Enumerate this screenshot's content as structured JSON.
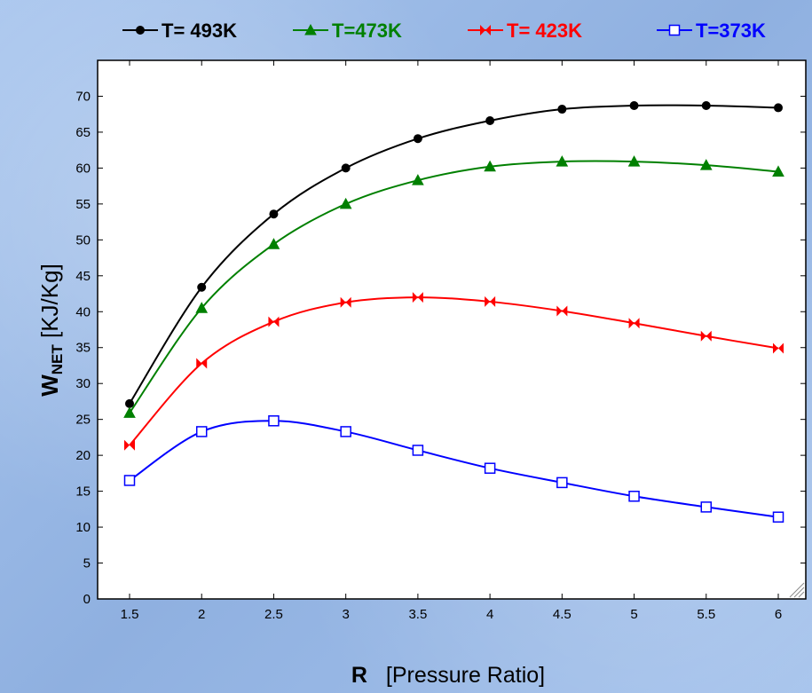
{
  "chart_data": {
    "type": "line",
    "x": [
      1.5,
      2,
      2.5,
      3,
      3.5,
      4,
      4.5,
      5,
      5.5,
      6
    ],
    "series": [
      {
        "name": "T= 493K",
        "color": "#000000",
        "marker": "circle",
        "values": [
          27.2,
          43.4,
          53.6,
          60.0,
          64.1,
          66.6,
          68.2,
          68.7,
          68.7,
          68.4
        ]
      },
      {
        "name": "T=473K",
        "color": "#008000",
        "marker": "triangle",
        "values": [
          25.9,
          40.5,
          49.4,
          55.0,
          58.3,
          60.2,
          60.9,
          60.9,
          60.4,
          59.5
        ]
      },
      {
        "name": "T= 423K",
        "color": "#ff0000",
        "marker": "bowtie",
        "values": [
          21.4,
          32.8,
          38.6,
          41.3,
          42.0,
          41.4,
          40.1,
          38.4,
          36.6,
          34.9
        ]
      },
      {
        "name": "T=373K",
        "color": "#0000ff",
        "marker": "square",
        "values": [
          16.5,
          23.3,
          24.8,
          23.3,
          20.7,
          18.2,
          16.2,
          14.3,
          12.8,
          11.4
        ]
      }
    ],
    "x_ticks": [
      "1.5",
      "2",
      "2.5",
      "3",
      "3.5",
      "4",
      "4.5",
      "5",
      "5.5",
      "6"
    ],
    "y_ticks": [
      "0",
      "5",
      "10",
      "15",
      "20",
      "25",
      "30",
      "35",
      "40",
      "45",
      "50",
      "55",
      "60",
      "65",
      "70"
    ],
    "xlim": [
      1.5,
      6
    ],
    "ylim": [
      0,
      75
    ],
    "xlabel_bold": "R",
    "xlabel_rest": "[Pressure Ratio]",
    "ylabel_main": "W",
    "ylabel_sub": "NET",
    "ylabel_rest": " [KJ/Kg]",
    "legend_position": "top",
    "grid": false
  }
}
